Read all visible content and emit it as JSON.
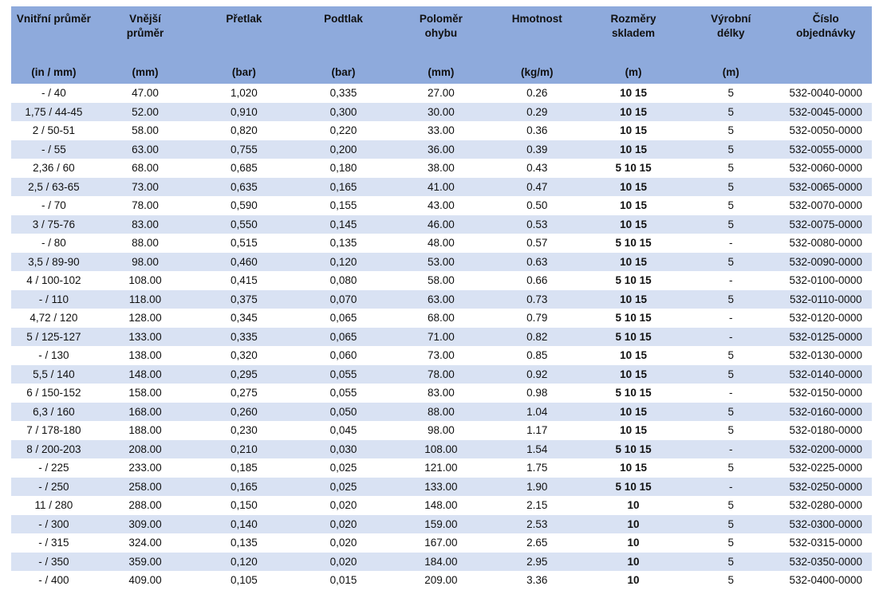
{
  "colors": {
    "header_bg": "#8EAADC",
    "stripe_bg": "#D9E2F3",
    "text": "#111111"
  },
  "table": {
    "columns": [
      {
        "label": "Vnitřní průměr",
        "unit": "(in / mm)"
      },
      {
        "label": "Vnější\nprůměr",
        "unit": "(mm)"
      },
      {
        "label": "Přetlak",
        "unit": "(bar)"
      },
      {
        "label": "Podtlak",
        "unit": "(bar)"
      },
      {
        "label": "Poloměr\nohybu",
        "unit": "(mm)"
      },
      {
        "label": "Hmotnost",
        "unit": "(kg/m)"
      },
      {
        "label": "Rozměry\nskladem",
        "unit": "(m)"
      },
      {
        "label": "Výrobní\ndélky",
        "unit": "(m)"
      },
      {
        "label": "Číslo\nobjednávky",
        "unit": ""
      }
    ],
    "rows": [
      [
        "- / 40",
        "47.00",
        "1,020",
        "0,335",
        "27.00",
        "0.26",
        "10 15",
        "5",
        "532-0040-0000"
      ],
      [
        "1,75 / 44-45",
        "52.00",
        "0,910",
        "0,300",
        "30.00",
        "0.29",
        "10 15",
        "5",
        "532-0045-0000"
      ],
      [
        "2 / 50-51",
        "58.00",
        "0,820",
        "0,220",
        "33.00",
        "0.36",
        "10 15",
        "5",
        "532-0050-0000"
      ],
      [
        "- / 55",
        "63.00",
        "0,755",
        "0,200",
        "36.00",
        "0.39",
        "10 15",
        "5",
        "532-0055-0000"
      ],
      [
        "2,36 / 60",
        "68.00",
        "0,685",
        "0,180",
        "38.00",
        "0.43",
        "5 10 15",
        "5",
        "532-0060-0000"
      ],
      [
        "2,5 / 63-65",
        "73.00",
        "0,635",
        "0,165",
        "41.00",
        "0.47",
        "10 15",
        "5",
        "532-0065-0000"
      ],
      [
        "- / 70",
        "78.00",
        "0,590",
        "0,155",
        "43.00",
        "0.50",
        "10 15",
        "5",
        "532-0070-0000"
      ],
      [
        "3 / 75-76",
        "83.00",
        "0,550",
        "0,145",
        "46.00",
        "0.53",
        "10 15",
        "5",
        "532-0075-0000"
      ],
      [
        "- / 80",
        "88.00",
        "0,515",
        "0,135",
        "48.00",
        "0.57",
        "5 10 15",
        "-",
        "532-0080-0000"
      ],
      [
        "3,5 / 89-90",
        "98.00",
        "0,460",
        "0,120",
        "53.00",
        "0.63",
        "10 15",
        "5",
        "532-0090-0000"
      ],
      [
        "4 / 100-102",
        "108.00",
        "0,415",
        "0,080",
        "58.00",
        "0.66",
        "5 10 15",
        "-",
        "532-0100-0000"
      ],
      [
        "- / 110",
        "118.00",
        "0,375",
        "0,070",
        "63.00",
        "0.73",
        "10 15",
        "5",
        "532-0110-0000"
      ],
      [
        "4,72 / 120",
        "128.00",
        "0,345",
        "0,065",
        "68.00",
        "0.79",
        "5 10 15",
        "-",
        "532-0120-0000"
      ],
      [
        "5 / 125-127",
        "133.00",
        "0,335",
        "0,065",
        "71.00",
        "0.82",
        "5 10 15",
        "-",
        "532-0125-0000"
      ],
      [
        "- / 130",
        "138.00",
        "0,320",
        "0,060",
        "73.00",
        "0.85",
        "10 15",
        "5",
        "532-0130-0000"
      ],
      [
        "5,5 / 140",
        "148.00",
        "0,295",
        "0,055",
        "78.00",
        "0.92",
        "10 15",
        "5",
        "532-0140-0000"
      ],
      [
        "6 / 150-152",
        "158.00",
        "0,275",
        "0,055",
        "83.00",
        "0.98",
        "5 10 15",
        "-",
        "532-0150-0000"
      ],
      [
        "6,3 / 160",
        "168.00",
        "0,260",
        "0,050",
        "88.00",
        "1.04",
        "10 15",
        "5",
        "532-0160-0000"
      ],
      [
        "7 / 178-180",
        "188.00",
        "0,230",
        "0,045",
        "98.00",
        "1.17",
        "10 15",
        "5",
        "532-0180-0000"
      ],
      [
        "8 / 200-203",
        "208.00",
        "0,210",
        "0,030",
        "108.00",
        "1.54",
        "5 10 15",
        "-",
        "532-0200-0000"
      ],
      [
        "- / 225",
        "233.00",
        "0,185",
        "0,025",
        "121.00",
        "1.75",
        "10 15",
        "5",
        "532-0225-0000"
      ],
      [
        "- / 250",
        "258.00",
        "0,165",
        "0,025",
        "133.00",
        "1.90",
        "5 10 15",
        "-",
        "532-0250-0000"
      ],
      [
        "11 / 280",
        "288.00",
        "0,150",
        "0,020",
        "148.00",
        "2.15",
        "10",
        "5",
        "532-0280-0000"
      ],
      [
        "- / 300",
        "309.00",
        "0,140",
        "0,020",
        "159.00",
        "2.53",
        "10",
        "5",
        "532-0300-0000"
      ],
      [
        "- / 315",
        "324.00",
        "0,135",
        "0,020",
        "167.00",
        "2.65",
        "10",
        "5",
        "532-0315-0000"
      ],
      [
        "- / 350",
        "359.00",
        "0,120",
        "0,020",
        "184.00",
        "2.95",
        "10",
        "5",
        "532-0350-0000"
      ],
      [
        "- / 400",
        "409.00",
        "0,105",
        "0,015",
        "209.00",
        "3.36",
        "10",
        "5",
        "532-0400-0000"
      ]
    ]
  }
}
